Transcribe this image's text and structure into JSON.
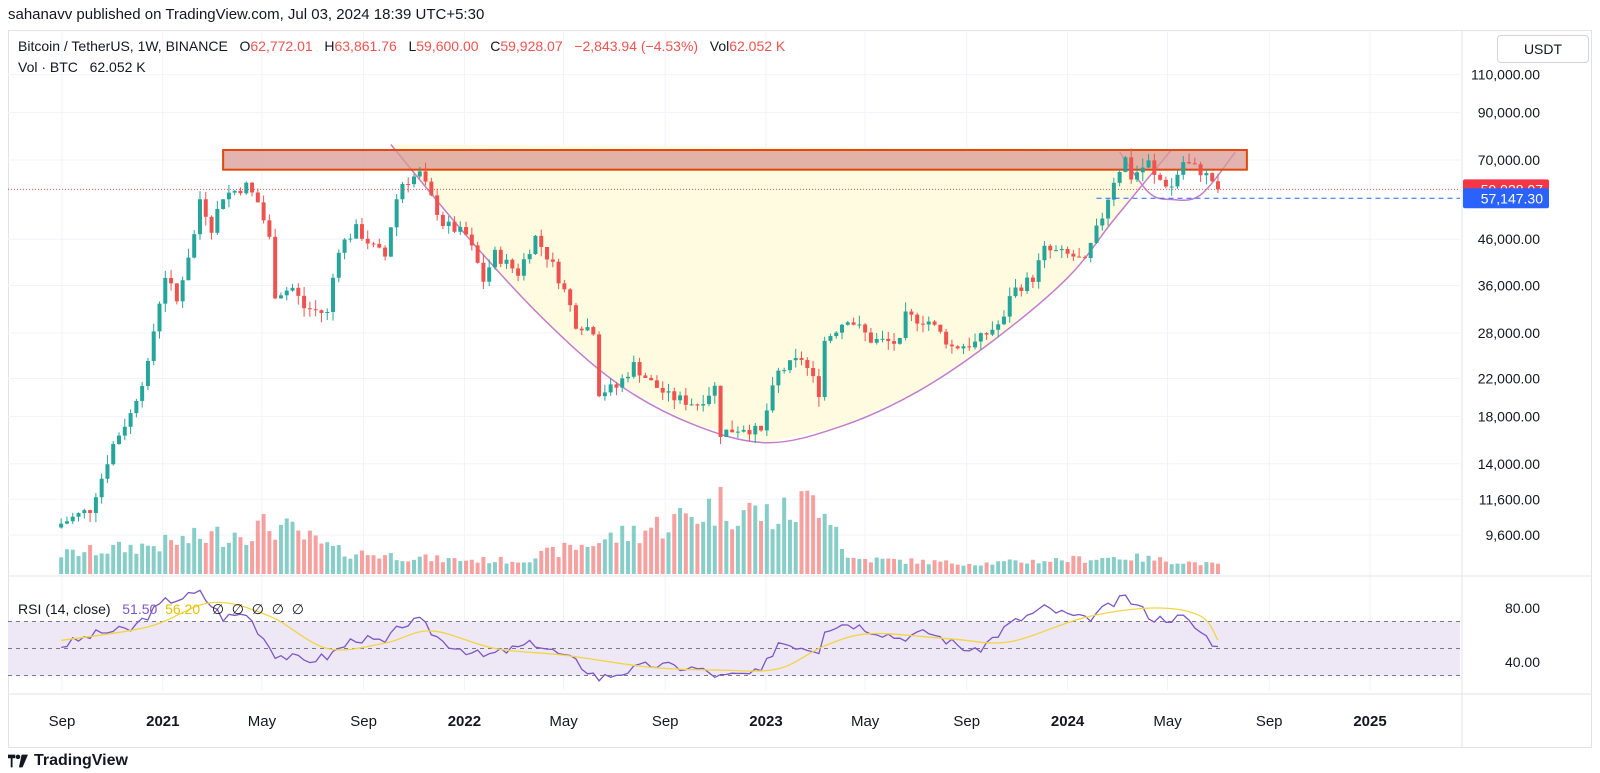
{
  "header": {
    "published_line": "sahanavv published on TradingView.com, Jul 03, 2024 18:39 UTC+5:30"
  },
  "legend": {
    "symbol": "Bitcoin / TetherUS, 1W, BINANCE",
    "o_label": "O",
    "o_value": "62,772.01",
    "h_label": "H",
    "h_value": "63,861.76",
    "l_label": "L",
    "l_value": "59,600.00",
    "c_label": "C",
    "c_value": "59,928.07",
    "change": "−2,843.94 (−4.53%)",
    "vol_label": "Vol",
    "vol_value": "62.052 K",
    "vol_line_label": "Vol · BTC",
    "vol_line_value": "62.052 K"
  },
  "rsi_legend": {
    "label": "RSI (14, close)",
    "rsi_value": "51.50",
    "ma_value": "56.20",
    "placeholders": [
      "∅",
      "∅",
      "∅",
      "∅",
      "∅"
    ]
  },
  "currency": "USDT",
  "footer": {
    "brand": "TradingView"
  },
  "colors": {
    "up": "#26a69a",
    "down": "#ef5350",
    "resistance_zone": "#d99a94",
    "resistance_border": "#e1470a",
    "cup_fill": "#fffbe0",
    "cup_line": "#c47ec7",
    "rsi_line": "#7e57c2",
    "rsi_ma": "#f2d544",
    "rsi_band": "#ede7f6",
    "price_label_bg": "#f23645",
    "support_label_bg": "#2962ff"
  },
  "chart_data": {
    "type": "candlestick",
    "price_axis_labels": [
      "110,000.00",
      "90,000.00",
      "70,000.00",
      "46,000.00",
      "36,000.00",
      "28,000.00",
      "22,000.00",
      "18,000.00",
      "14,000.00",
      "11,600.00",
      "9,600.00"
    ],
    "price_axis_values": [
      110000,
      90000,
      70000,
      46000,
      36000,
      28000,
      22000,
      18000,
      14000,
      11600,
      9600
    ],
    "price_scale": "log",
    "time_axis": [
      {
        "label": "Sep",
        "date": "2020-09-01",
        "bold": false
      },
      {
        "label": "2021",
        "date": "2021-01-01",
        "bold": true
      },
      {
        "label": "May",
        "date": "2021-05-01",
        "bold": false
      },
      {
        "label": "Sep",
        "date": "2021-09-01",
        "bold": false
      },
      {
        "label": "2022",
        "date": "2022-01-01",
        "bold": true
      },
      {
        "label": "May",
        "date": "2022-05-01",
        "bold": false
      },
      {
        "label": "Sep",
        "date": "2022-09-01",
        "bold": false
      },
      {
        "label": "2023",
        "date": "2023-01-01",
        "bold": true
      },
      {
        "label": "May",
        "date": "2023-05-01",
        "bold": false
      },
      {
        "label": "Sep",
        "date": "2023-09-01",
        "bold": false
      },
      {
        "label": "2024",
        "date": "2024-01-01",
        "bold": true
      },
      {
        "label": "May",
        "date": "2024-05-01",
        "bold": false
      },
      {
        "label": "Sep",
        "date": "2024-09-01",
        "bold": false
      },
      {
        "label": "2025",
        "date": "2025-01-01",
        "bold": true
      }
    ],
    "last_price": {
      "value": 59928.07,
      "label": "59,928.07"
    },
    "support": {
      "value": 57147.3,
      "label": "57,147.30"
    },
    "resistance_zone": {
      "low": 66500,
      "high": 73800,
      "from": "2021-03-15",
      "to": "2024-08-05"
    },
    "cup": [
      {
        "date": "2021-10-04",
        "price": 76000
      },
      {
        "date": "2022-01-03",
        "price": 47000
      },
      {
        "date": "2022-04-04",
        "price": 30500
      },
      {
        "date": "2022-07-04",
        "price": 21500
      },
      {
        "date": "2022-10-03",
        "price": 17300
      },
      {
        "date": "2023-01-02",
        "price": 15650
      },
      {
        "date": "2023-04-03",
        "price": 17100
      },
      {
        "date": "2023-07-03",
        "price": 20500
      },
      {
        "date": "2023-10-02",
        "price": 26800
      },
      {
        "date": "2024-01-01",
        "price": 37500
      },
      {
        "date": "2024-02-26",
        "price": 51000
      },
      {
        "date": "2024-05-06",
        "price": 74000
      }
    ],
    "handle": [
      {
        "date": "2024-03-04",
        "price": 73000
      },
      {
        "date": "2024-04-08",
        "price": 59000
      },
      {
        "date": "2024-05-06",
        "price": 56800
      },
      {
        "date": "2024-06-10",
        "price": 58200
      },
      {
        "date": "2024-07-22",
        "price": 73000
      }
    ],
    "close_points": [
      {
        "date": "2020-08-31",
        "close": 10200
      },
      {
        "date": "2020-10-05",
        "close": 11000
      },
      {
        "date": "2020-10-19",
        "close": 13000
      },
      {
        "date": "2020-11-02",
        "close": 15500
      },
      {
        "date": "2020-11-23",
        "close": 18200
      },
      {
        "date": "2020-12-14",
        "close": 23500
      },
      {
        "date": "2021-01-04",
        "close": 38000
      },
      {
        "date": "2021-01-18",
        "close": 33000
      },
      {
        "date": "2021-02-08",
        "close": 47000
      },
      {
        "date": "2021-02-15",
        "close": 57000
      },
      {
        "date": "2021-03-01",
        "close": 49000
      },
      {
        "date": "2021-03-15",
        "close": 58000
      },
      {
        "date": "2021-04-12",
        "close": 61000
      },
      {
        "date": "2021-04-26",
        "close": 56000
      },
      {
        "date": "2021-05-10",
        "close": 46000
      },
      {
        "date": "2021-05-17",
        "close": 34500
      },
      {
        "date": "2021-06-07",
        "close": 35500
      },
      {
        "date": "2021-06-21",
        "close": 32000
      },
      {
        "date": "2021-07-19",
        "close": 31000
      },
      {
        "date": "2021-08-02",
        "close": 44000
      },
      {
        "date": "2021-08-23",
        "close": 48500
      },
      {
        "date": "2021-09-13",
        "close": 44000
      },
      {
        "date": "2021-09-27",
        "close": 42000
      },
      {
        "date": "2021-10-11",
        "close": 57000
      },
      {
        "date": "2021-10-18",
        "close": 62000
      },
      {
        "date": "2021-11-08",
        "close": 65000
      },
      {
        "date": "2021-11-22",
        "close": 57000
      },
      {
        "date": "2021-12-06",
        "close": 50000
      },
      {
        "date": "2022-01-03",
        "close": 47000
      },
      {
        "date": "2022-01-24",
        "close": 37000
      },
      {
        "date": "2022-02-07",
        "close": 42500
      },
      {
        "date": "2022-03-07",
        "close": 38500
      },
      {
        "date": "2022-03-28",
        "close": 46500
      },
      {
        "date": "2022-04-18",
        "close": 40000
      },
      {
        "date": "2022-05-02",
        "close": 35000
      },
      {
        "date": "2022-05-16",
        "close": 29500
      },
      {
        "date": "2022-06-06",
        "close": 28500
      },
      {
        "date": "2022-06-13",
        "close": 20500
      },
      {
        "date": "2022-07-04",
        "close": 21000
      },
      {
        "date": "2022-07-25",
        "close": 23600
      },
      {
        "date": "2022-08-15",
        "close": 21500
      },
      {
        "date": "2022-09-05",
        "close": 20000
      },
      {
        "date": "2022-10-10",
        "close": 19200
      },
      {
        "date": "2022-10-31",
        "close": 21000
      },
      {
        "date": "2022-11-07",
        "close": 16500
      },
      {
        "date": "2022-12-05",
        "close": 17000
      },
      {
        "date": "2022-12-26",
        "close": 16500
      },
      {
        "date": "2023-01-16",
        "close": 22700
      },
      {
        "date": "2023-02-13",
        "close": 24500
      },
      {
        "date": "2023-03-06",
        "close": 20500
      },
      {
        "date": "2023-03-13",
        "close": 26900
      },
      {
        "date": "2023-04-10",
        "close": 30400
      },
      {
        "date": "2023-05-08",
        "close": 27000
      },
      {
        "date": "2023-06-12",
        "close": 26500
      },
      {
        "date": "2023-06-19",
        "close": 30500
      },
      {
        "date": "2023-07-17",
        "close": 29800
      },
      {
        "date": "2023-08-14",
        "close": 26000
      },
      {
        "date": "2023-09-11",
        "close": 26500
      },
      {
        "date": "2023-10-16",
        "close": 30000
      },
      {
        "date": "2023-10-23",
        "close": 34500
      },
      {
        "date": "2023-11-20",
        "close": 37500
      },
      {
        "date": "2023-12-04",
        "close": 43500
      },
      {
        "date": "2024-01-08",
        "close": 42000
      },
      {
        "date": "2024-01-22",
        "close": 40500
      },
      {
        "date": "2024-02-12",
        "close": 52000
      },
      {
        "date": "2024-02-26",
        "close": 63000
      },
      {
        "date": "2024-03-11",
        "close": 70500
      },
      {
        "date": "2024-03-18",
        "close": 64000
      },
      {
        "date": "2024-04-08",
        "close": 69000
      },
      {
        "date": "2024-04-15",
        "close": 64000
      },
      {
        "date": "2024-05-06",
        "close": 60800
      },
      {
        "date": "2024-05-20",
        "close": 69300
      },
      {
        "date": "2024-06-10",
        "close": 66000
      },
      {
        "date": "2024-06-24",
        "close": 62800
      },
      {
        "date": "2024-07-01",
        "close": 59928
      }
    ],
    "volume_points": [
      {
        "date": "2020-08-31",
        "v": 0.3
      },
      {
        "date": "2020-11-02",
        "v": 0.4
      },
      {
        "date": "2021-01-04",
        "v": 0.5
      },
      {
        "date": "2021-05-17",
        "v": 0.85
      },
      {
        "date": "2021-08-02",
        "v": 0.35
      },
      {
        "date": "2021-12-06",
        "v": 0.2
      },
      {
        "date": "2022-03-07",
        "v": 0.18
      },
      {
        "date": "2022-06-13",
        "v": 0.55
      },
      {
        "date": "2022-09-05",
        "v": 0.9
      },
      {
        "date": "2022-11-07",
        "v": 1.25
      },
      {
        "date": "2023-01-16",
        "v": 1.0
      },
      {
        "date": "2023-03-13",
        "v": 1.45
      },
      {
        "date": "2023-04-10",
        "v": 0.22
      },
      {
        "date": "2023-09-11",
        "v": 0.12
      },
      {
        "date": "2024-03-11",
        "v": 0.25
      },
      {
        "date": "2024-07-01",
        "v": 0.1
      }
    ],
    "rsi": {
      "axis_labels": [
        "80.00",
        "40.00"
      ],
      "axis_values": [
        80,
        40
      ],
      "upper": 70,
      "lower": 30,
      "middle": 50,
      "points": [
        {
          "date": "2020-08-31",
          "v": 52
        },
        {
          "date": "2020-10-19",
          "v": 62
        },
        {
          "date": "2020-11-23",
          "v": 64
        },
        {
          "date": "2021-01-04",
          "v": 85
        },
        {
          "date": "2021-02-15",
          "v": 91
        },
        {
          "date": "2021-03-15",
          "v": 73
        },
        {
          "date": "2021-04-12",
          "v": 76
        },
        {
          "date": "2021-05-17",
          "v": 46
        },
        {
          "date": "2021-06-21",
          "v": 41
        },
        {
          "date": "2021-07-19",
          "v": 44
        },
        {
          "date": "2021-08-23",
          "v": 58
        },
        {
          "date": "2021-09-27",
          "v": 54
        },
        {
          "date": "2021-10-18",
          "v": 68
        },
        {
          "date": "2021-11-08",
          "v": 70
        },
        {
          "date": "2021-12-06",
          "v": 55
        },
        {
          "date": "2022-01-24",
          "v": 44
        },
        {
          "date": "2022-03-28",
          "v": 54
        },
        {
          "date": "2022-05-16",
          "v": 40
        },
        {
          "date": "2022-06-13",
          "v": 28
        },
        {
          "date": "2022-08-15",
          "v": 38
        },
        {
          "date": "2022-10-10",
          "v": 35
        },
        {
          "date": "2022-11-07",
          "v": 29
        },
        {
          "date": "2022-12-26",
          "v": 32
        },
        {
          "date": "2023-01-16",
          "v": 55
        },
        {
          "date": "2023-03-06",
          "v": 49
        },
        {
          "date": "2023-03-13",
          "v": 65
        },
        {
          "date": "2023-04-10",
          "v": 69
        },
        {
          "date": "2023-06-12",
          "v": 58
        },
        {
          "date": "2023-07-17",
          "v": 62
        },
        {
          "date": "2023-09-11",
          "v": 47
        },
        {
          "date": "2023-10-23",
          "v": 68
        },
        {
          "date": "2023-12-04",
          "v": 80
        },
        {
          "date": "2024-01-22",
          "v": 71
        },
        {
          "date": "2024-03-11",
          "v": 88
        },
        {
          "date": "2024-04-15",
          "v": 72
        },
        {
          "date": "2024-05-20",
          "v": 73
        },
        {
          "date": "2024-07-01",
          "v": 51.5
        }
      ],
      "ma_points": [
        {
          "date": "2020-08-31",
          "v": 56
        },
        {
          "date": "2020-12-14",
          "v": 66
        },
        {
          "date": "2021-03-01",
          "v": 84
        },
        {
          "date": "2021-05-10",
          "v": 74
        },
        {
          "date": "2021-07-19",
          "v": 50
        },
        {
          "date": "2021-09-27",
          "v": 54
        },
        {
          "date": "2021-11-22",
          "v": 63
        },
        {
          "date": "2022-02-07",
          "v": 50
        },
        {
          "date": "2022-05-02",
          "v": 45
        },
        {
          "date": "2022-08-15",
          "v": 36
        },
        {
          "date": "2022-11-07",
          "v": 34
        },
        {
          "date": "2023-01-16",
          "v": 35
        },
        {
          "date": "2023-03-13",
          "v": 52
        },
        {
          "date": "2023-05-08",
          "v": 61
        },
        {
          "date": "2023-08-14",
          "v": 57
        },
        {
          "date": "2023-10-23",
          "v": 55
        },
        {
          "date": "2024-01-22",
          "v": 73
        },
        {
          "date": "2024-04-15",
          "v": 80
        },
        {
          "date": "2024-06-10",
          "v": 74
        },
        {
          "date": "2024-07-01",
          "v": 56.2
        }
      ]
    }
  }
}
